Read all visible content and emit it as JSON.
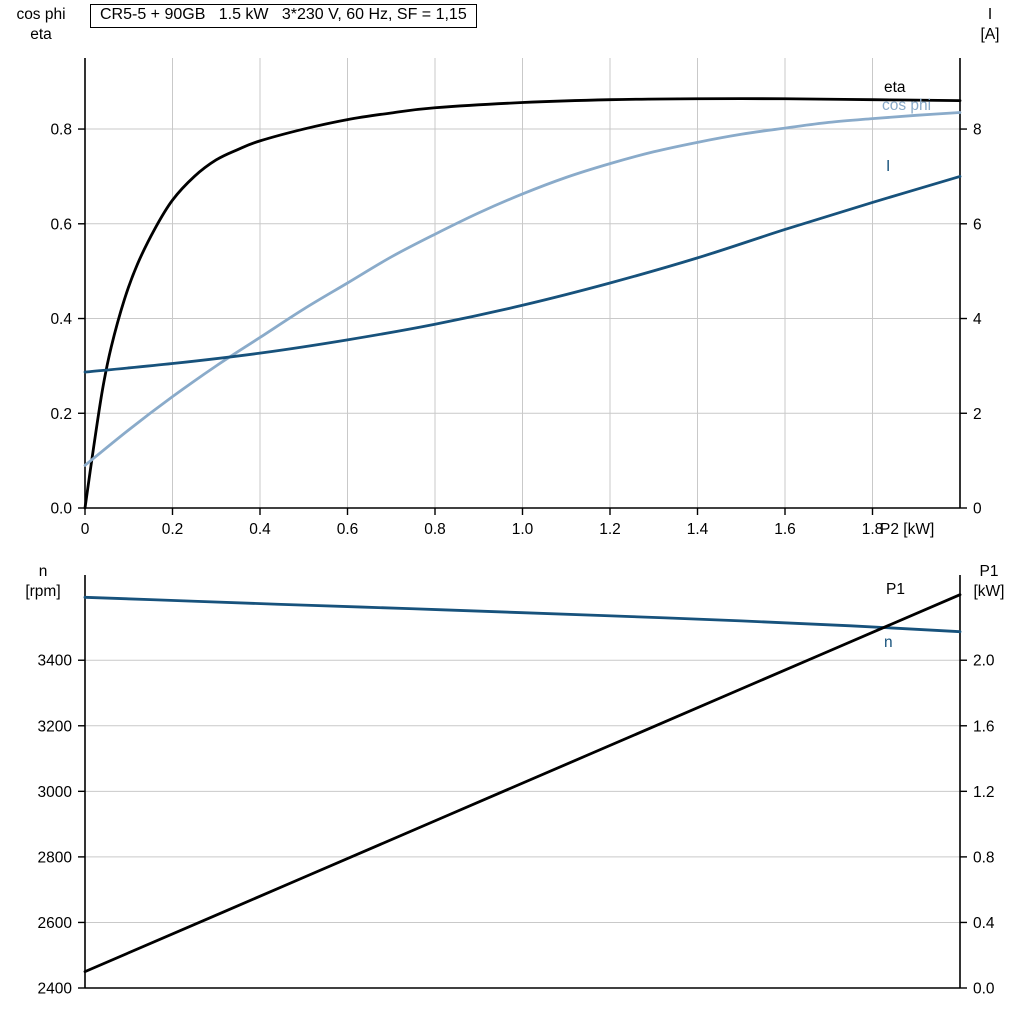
{
  "title_box": {
    "text": "CR5-5 + 90GB   1.5 kW   3*230 V, 60 Hz, SF = 1,15"
  },
  "colors": {
    "black": "#000000",
    "dark_blue": "#17527c",
    "light_blue": "#8aabca",
    "grid": "#c9c9c9",
    "axis": "#000000"
  },
  "chart_data": [
    {
      "type": "line",
      "x_axis": {
        "label": "P2 [kW]",
        "range": [
          0,
          2.0
        ],
        "tick_values": [
          0,
          0.2,
          0.4,
          0.6,
          0.8,
          1.0,
          1.2,
          1.4,
          1.6,
          1.8
        ],
        "tick_labels": [
          "0",
          "0.2",
          "0.4",
          "0.6",
          "0.8",
          "1.0",
          "1.2",
          "1.4",
          "1.6",
          "1.8"
        ]
      },
      "left_axis": {
        "title_lines": [
          "cos phi",
          "eta"
        ],
        "range": [
          0,
          0.95
        ],
        "tick_values": [
          0,
          0.2,
          0.4,
          0.6,
          0.8
        ],
        "tick_labels": [
          "0.0",
          "0.2",
          "0.4",
          "0.6",
          "0.8"
        ]
      },
      "right_axis": {
        "title_lines": [
          "I",
          "[A]"
        ],
        "range": [
          0,
          9.5
        ],
        "tick_values": [
          0,
          2,
          4,
          6,
          8
        ],
        "tick_labels": [
          "0",
          "2",
          "4",
          "6",
          "8"
        ]
      },
      "series": [
        {
          "name": "eta",
          "axis": "left",
          "color_key": "black",
          "x": [
            0,
            0.02,
            0.04,
            0.06,
            0.09,
            0.12,
            0.16,
            0.2,
            0.25,
            0.3,
            0.35,
            0.4,
            0.5,
            0.6,
            0.7,
            0.8,
            1.0,
            1.2,
            1.4,
            1.6,
            1.8,
            2.0
          ],
          "y": [
            0,
            0.13,
            0.25,
            0.34,
            0.44,
            0.515,
            0.59,
            0.65,
            0.7,
            0.735,
            0.757,
            0.775,
            0.8,
            0.82,
            0.834,
            0.845,
            0.856,
            0.862,
            0.864,
            0.864,
            0.862,
            0.86
          ]
        },
        {
          "name": "cos phi",
          "axis": "left",
          "color_key": "light_blue",
          "x": [
            0,
            0.1,
            0.2,
            0.3,
            0.4,
            0.5,
            0.6,
            0.7,
            0.8,
            0.9,
            1.0,
            1.1,
            1.2,
            1.3,
            1.4,
            1.5,
            1.6,
            1.7,
            1.8,
            1.9,
            2.0
          ],
          "y": [
            0.09,
            0.165,
            0.235,
            0.3,
            0.36,
            0.42,
            0.475,
            0.53,
            0.578,
            0.623,
            0.663,
            0.698,
            0.727,
            0.752,
            0.772,
            0.789,
            0.802,
            0.814,
            0.822,
            0.829,
            0.835
          ]
        },
        {
          "name": "I",
          "axis": "right",
          "color_key": "dark_blue",
          "x": [
            0,
            0.2,
            0.4,
            0.6,
            0.8,
            1.0,
            1.2,
            1.4,
            1.6,
            1.8,
            2.0
          ],
          "y": [
            2.87,
            3.05,
            3.27,
            3.55,
            3.88,
            4.28,
            4.75,
            5.28,
            5.88,
            6.45,
            7.0
          ]
        }
      ]
    },
    {
      "type": "line",
      "x_axis": {
        "label": "",
        "range": [
          0,
          2.0
        ],
        "tick_values": [],
        "tick_labels": []
      },
      "left_axis": {
        "title_lines": [
          "n",
          "[rpm]"
        ],
        "range": [
          2400,
          3660
        ],
        "tick_values": [
          2400,
          2600,
          2800,
          3000,
          3200,
          3400
        ],
        "tick_labels": [
          "2400",
          "2600",
          "2800",
          "3000",
          "3200",
          "3400"
        ]
      },
      "right_axis": {
        "title_lines": [
          "P1",
          "[kW]"
        ],
        "range": [
          0,
          2.52
        ],
        "tick_values": [
          0,
          0.4,
          0.8,
          1.2,
          1.6,
          2.0
        ],
        "tick_labels": [
          "0.0",
          "0.4",
          "0.8",
          "1.2",
          "1.6",
          "2.0"
        ]
      },
      "series": [
        {
          "name": "n",
          "axis": "left",
          "color_key": "dark_blue",
          "x": [
            0,
            0.25,
            0.5,
            0.75,
            1.0,
            1.25,
            1.5,
            1.75,
            2.0
          ],
          "y": [
            3592,
            3580,
            3568,
            3557,
            3545,
            3533,
            3520,
            3505,
            3487
          ]
        },
        {
          "name": "P1",
          "axis": "right",
          "color_key": "black",
          "x": [
            0,
            0.5,
            1.0,
            1.5,
            2.0
          ],
          "y": [
            0.1,
            0.675,
            1.25,
            1.825,
            2.4
          ]
        }
      ]
    }
  ]
}
